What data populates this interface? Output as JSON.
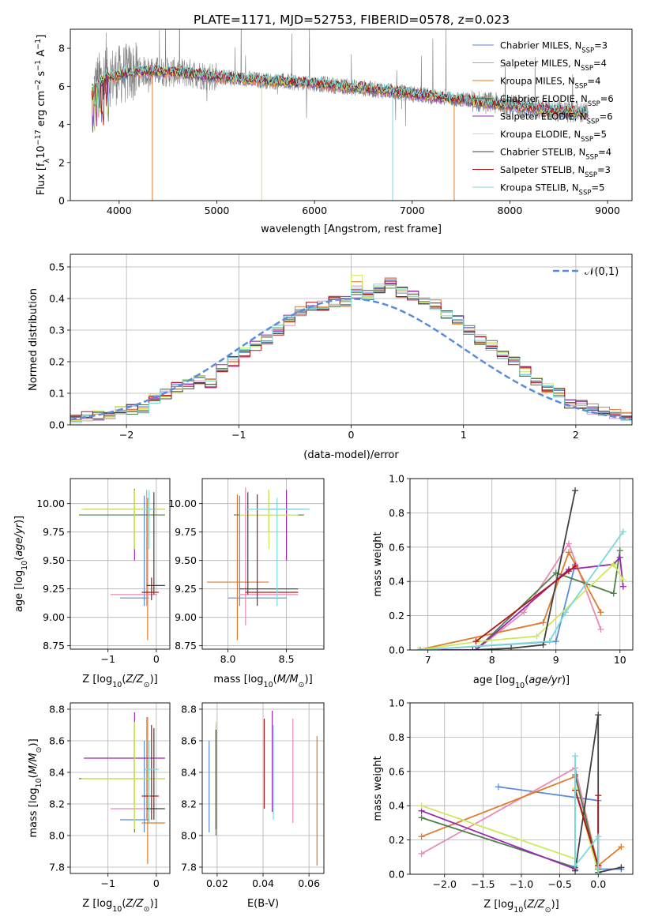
{
  "figure": {
    "title": "PLATE=1171, MJD=52753, FIBERID=0578, z=0.023"
  },
  "colors": {
    "grid": "#b0b0b0",
    "series": [
      "#5b8bdc",
      "#e889b6",
      "#e07a28",
      "#4c8048",
      "#9a27b0",
      "#cfe85a",
      "#404040",
      "#b01818",
      "#78dada"
    ],
    "data": "#808080",
    "normal": "#5b8bdc"
  },
  "chart_data": [
    {
      "id": "spectrum",
      "type": "line",
      "title": "PLATE=1171, MJD=52753, FIBERID=0578, z=0.023",
      "xlabel": "wavelength [Angstrom, rest frame]",
      "ylabel": "Flux [f_λ10^-17 erg cm^-2 s^-1 A^-1]",
      "xlim": [
        3500,
        9250
      ],
      "ylim": [
        0,
        9
      ],
      "xticks": [
        4000,
        5000,
        6000,
        7000,
        8000,
        9000
      ],
      "yticks": [
        0,
        2,
        4,
        6,
        8
      ],
      "legend_position": "top-right",
      "series": [
        {
          "name": "Chabrier MILES, N_SSP=3",
          "label_main": "Chabrier MILES, N",
          "sub": "SSP",
          "label_tail": "=3"
        },
        {
          "name": "Salpeter MILES, N_SSP=4",
          "label_main": "Salpeter MILES, N",
          "sub": "SSP",
          "label_tail": "=4"
        },
        {
          "name": "Kroupa MILES, N_SSP=4",
          "label_main": "Kroupa MILES, N",
          "sub": "SSP",
          "label_tail": "=4"
        },
        {
          "name": "Chabrier ELODIE, N_SSP=6",
          "label_main": "Chabrier ELODIE, N",
          "sub": "SSP",
          "label_tail": "=6"
        },
        {
          "name": "Salpeter ELODIE, N_SSP=6",
          "label_main": "Salpeter ELODIE, N",
          "sub": "SSP",
          "label_tail": "=6"
        },
        {
          "name": "Kroupa ELODIE, N_SSP=5",
          "label_main": "Kroupa ELODIE, N",
          "sub": "SSP",
          "label_tail": "=5"
        },
        {
          "name": "Chabrier STELIB, N_SSP=4",
          "label_main": "Chabrier STELIB, N",
          "sub": "SSP",
          "label_tail": "=4"
        },
        {
          "name": "Salpeter STELIB, N_SSP=3",
          "label_main": "Salpeter STELIB, N",
          "sub": "SSP",
          "label_tail": "=3"
        },
        {
          "name": "Kroupa STELIB, N_SSP=5",
          "label_main": "Kroupa STELIB, N",
          "sub": "SSP",
          "label_tail": "=5"
        }
      ],
      "continuum": [
        [
          3700,
          5.7
        ],
        [
          3800,
          6.3
        ],
        [
          3900,
          6.5
        ],
        [
          4000,
          6.6
        ],
        [
          4100,
          6.7
        ],
        [
          4300,
          6.8
        ],
        [
          4500,
          6.75
        ],
        [
          4700,
          6.7
        ],
        [
          5000,
          6.5
        ],
        [
          5500,
          6.3
        ],
        [
          6000,
          6.15
        ],
        [
          6500,
          5.9
        ],
        [
          7000,
          5.6
        ],
        [
          7500,
          5.3
        ],
        [
          8000,
          5.0
        ],
        [
          8500,
          4.7
        ],
        [
          8800,
          4.6
        ]
      ],
      "model_spikes": [
        {
          "x": 4340,
          "to": 0.0
        },
        {
          "x": 5460,
          "to": 0.0
        },
        {
          "x": 6800,
          "to": 0.0
        },
        {
          "x": 7430,
          "to": 0.0
        }
      ]
    },
    {
      "id": "residuals",
      "type": "step",
      "xlabel": "(data-model)/error",
      "ylabel": "Normed distribution",
      "xlim": [
        -2.5,
        2.5
      ],
      "ylim": [
        0,
        0.54
      ],
      "xticks": [
        -2,
        -1,
        0,
        1,
        2
      ],
      "yticks": [
        0.0,
        0.1,
        0.2,
        0.3,
        0.4,
        0.5
      ],
      "bin_width": 0.1,
      "legend": {
        "label": "𝒩(0,1)",
        "position": "top-right"
      },
      "histogram_base": [
        0.02,
        0.025,
        0.03,
        0.03,
        0.045,
        0.05,
        0.055,
        0.08,
        0.1,
        0.12,
        0.13,
        0.14,
        0.13,
        0.18,
        0.2,
        0.23,
        0.25,
        0.27,
        0.3,
        0.33,
        0.36,
        0.38,
        0.38,
        0.39,
        0.39,
        0.4,
        0.41,
        0.43,
        0.45,
        0.42,
        0.41,
        0.4,
        0.38,
        0.35,
        0.33,
        0.3,
        0.27,
        0.25,
        0.22,
        0.2,
        0.17,
        0.14,
        0.12,
        0.1,
        0.07,
        0.06,
        0.05,
        0.04,
        0.035,
        0.03
      ]
    },
    {
      "id": "age_vs_Z",
      "type": "errorbar",
      "xlabel": "Z [log10(Z/Z⊙)]",
      "ylabel": "age [log10(age/yr)]",
      "xlim": [
        -1.78,
        0.28
      ],
      "ylim": [
        8.72,
        10.22
      ],
      "xticks": [
        -1,
        0
      ],
      "yticks": [
        8.75,
        9.0,
        9.25,
        9.5,
        9.75,
        10.0
      ],
      "points": [
        {
          "x": -0.25,
          "y": 9.17,
          "xlo": -0.75,
          "xhi": -0.15,
          "ylo": 9.1,
          "yhi": 10.07
        },
        {
          "x": -0.2,
          "y": 9.2,
          "xlo": -0.95,
          "xhi": 0.02,
          "ylo": 9.1,
          "yhi": 10.12
        },
        {
          "x": -0.18,
          "y": 9.22,
          "xlo": -0.3,
          "xhi": -0.05,
          "ylo": 8.8,
          "yhi": 10.05
        },
        {
          "x": -0.45,
          "y": 9.9,
          "xlo": -1.6,
          "xhi": 0.18,
          "ylo": 9.6,
          "yhi": 10.13
        },
        {
          "x": -0.45,
          "y": 9.95,
          "xlo": -1.5,
          "xhi": 0.18,
          "ylo": 9.5,
          "yhi": 10.12
        },
        {
          "x": -0.45,
          "y": 9.95,
          "xlo": -1.55,
          "xhi": 0.18,
          "ylo": 9.6,
          "yhi": 10.12
        },
        {
          "x": -0.05,
          "y": 9.28,
          "xlo": -0.2,
          "xhi": 0.18,
          "ylo": 9.2,
          "yhi": 10.1
        },
        {
          "x": -0.1,
          "y": 9.22,
          "xlo": -0.3,
          "xhi": 0.05,
          "ylo": 9.15,
          "yhi": 9.35
        },
        {
          "x": -0.15,
          "y": 9.95,
          "xlo": -0.25,
          "xhi": -0.05,
          "ylo": 9.6,
          "yhi": 10.12
        }
      ]
    },
    {
      "id": "age_vs_mass",
      "type": "errorbar",
      "xlabel": "mass [log10(M/M⊙)]",
      "ylabel": "",
      "xlim": [
        7.78,
        8.82
      ],
      "ylim": [
        8.72,
        10.22
      ],
      "xticks": [
        8.0,
        8.5
      ],
      "yticks": [
        8.75,
        9.0,
        9.25,
        9.5,
        9.75,
        10.0
      ],
      "points": [
        {
          "x": 8.1,
          "y": 9.17,
          "xlo": 8.0,
          "xhi": 8.5,
          "ylo": 9.1,
          "yhi": 10.07
        },
        {
          "x": 8.15,
          "y": 9.2,
          "xlo": 8.1,
          "xhi": 8.6,
          "ylo": 8.93,
          "yhi": 10.14
        },
        {
          "x": 8.08,
          "y": 9.31,
          "xlo": 7.82,
          "xhi": 8.35,
          "ylo": 8.8,
          "yhi": 10.08
        },
        {
          "x": 8.35,
          "y": 9.9,
          "xlo": 8.05,
          "xhi": 8.65,
          "ylo": 9.75,
          "yhi": 10.12
        },
        {
          "x": 8.5,
          "y": 9.95,
          "xlo": 8.35,
          "xhi": 8.65,
          "ylo": 9.5,
          "yhi": 10.12
        },
        {
          "x": 8.35,
          "y": 9.9,
          "xlo": 8.1,
          "xhi": 8.6,
          "ylo": 9.6,
          "yhi": 10.12
        },
        {
          "x": 8.17,
          "y": 9.25,
          "xlo": 8.1,
          "xhi": 8.6,
          "ylo": 9.2,
          "yhi": 10.1
        },
        {
          "x": 8.25,
          "y": 9.22,
          "xlo": 8.15,
          "xhi": 8.6,
          "ylo": 9.1,
          "yhi": 10.08
        },
        {
          "x": 8.42,
          "y": 9.95,
          "xlo": 8.15,
          "xhi": 8.7,
          "ylo": 9.1,
          "yhi": 10.05
        }
      ]
    },
    {
      "id": "weight_vs_age",
      "type": "line",
      "xlabel": "age [log10(age/yr)]",
      "ylabel": "mass weight",
      "xlim": [
        6.72,
        10.2
      ],
      "ylim": [
        0,
        1.0
      ],
      "xticks": [
        7,
        8,
        9,
        10
      ],
      "yticks": [
        0.0,
        0.2,
        0.4,
        0.6,
        0.8,
        1.0
      ],
      "series": [
        {
          "points": [
            [
              6.88,
              0.0
            ],
            [
              9.0,
              0.05
            ],
            [
              9.3,
              0.5
            ]
          ]
        },
        {
          "points": [
            [
              7.75,
              0.0
            ],
            [
              8.5,
              0.22
            ],
            [
              9.2,
              0.62
            ],
            [
              9.7,
              0.12
            ]
          ]
        },
        {
          "points": [
            [
              6.85,
              0.0
            ],
            [
              8.8,
              0.16
            ],
            [
              9.2,
              0.57
            ],
            [
              9.7,
              0.22
            ]
          ]
        },
        {
          "points": [
            [
              6.88,
              0.0
            ],
            [
              7.75,
              0.0
            ],
            [
              9.0,
              0.45
            ],
            [
              9.9,
              0.33
            ],
            [
              10.0,
              0.58
            ]
          ]
        },
        {
          "points": [
            [
              6.88,
              0.0
            ],
            [
              7.75,
              0.0
            ],
            [
              9.2,
              0.47
            ],
            [
              9.9,
              0.5
            ],
            [
              10.0,
              0.54
            ],
            [
              10.05,
              0.37
            ]
          ]
        },
        {
          "points": [
            [
              6.85,
              0.0
            ],
            [
              7.8,
              0.05
            ],
            [
              8.7,
              0.08
            ],
            [
              9.9,
              0.5
            ],
            [
              10.05,
              0.41
            ]
          ]
        },
        {
          "points": [
            [
              7.7,
              0.0
            ],
            [
              8.3,
              0.01
            ],
            [
              8.8,
              0.03
            ],
            [
              9.3,
              0.93
            ]
          ]
        },
        {
          "points": [
            [
              7.75,
              0.05
            ],
            [
              9.2,
              0.46
            ],
            [
              9.3,
              0.49
            ]
          ]
        },
        {
          "points": [
            [
              6.88,
              0.0
            ],
            [
              8.9,
              0.05
            ],
            [
              9.15,
              0.22
            ],
            [
              10.05,
              0.69
            ]
          ]
        }
      ]
    },
    {
      "id": "mass_vs_Z",
      "type": "errorbar",
      "xlabel": "Z [log10(Z/Z⊙)]",
      "ylabel": "mass [log10(M/M⊙)]",
      "xlim": [
        -1.78,
        0.28
      ],
      "ylim": [
        7.76,
        8.84
      ],
      "xticks": [
        -1,
        0
      ],
      "yticks": [
        7.8,
        8.0,
        8.2,
        8.4,
        8.6,
        8.8
      ],
      "points": [
        {
          "x": -0.25,
          "y": 8.1,
          "xlo": -0.75,
          "xhi": -0.15,
          "ylo": 8.02,
          "yhi": 8.6
        },
        {
          "x": -0.2,
          "y": 8.17,
          "xlo": -0.95,
          "xhi": 0.02,
          "ylo": 8.1,
          "yhi": 8.75
        },
        {
          "x": -0.18,
          "y": 8.08,
          "xlo": -0.3,
          "xhi": 0.18,
          "ylo": 7.82,
          "yhi": 8.75
        },
        {
          "x": -0.45,
          "y": 8.36,
          "xlo": -1.6,
          "xhi": 0.18,
          "ylo": 8.02,
          "yhi": 8.7
        },
        {
          "x": -0.45,
          "y": 8.49,
          "xlo": -1.5,
          "xhi": 0.18,
          "ylo": 8.2,
          "yhi": 8.78
        },
        {
          "x": -0.45,
          "y": 8.36,
          "xlo": -1.55,
          "xhi": 0.18,
          "ylo": 8.04,
          "yhi": 8.72
        },
        {
          "x": -0.05,
          "y": 8.17,
          "xlo": -0.2,
          "xhi": 0.18,
          "ylo": 8.1,
          "yhi": 8.68
        },
        {
          "x": -0.1,
          "y": 8.25,
          "xlo": -0.3,
          "xhi": 0.05,
          "ylo": 8.1,
          "yhi": 8.7
        },
        {
          "x": -0.15,
          "y": 8.42,
          "xlo": -0.25,
          "xhi": 0.05,
          "ylo": 8.08,
          "yhi": 8.6
        }
      ]
    },
    {
      "id": "mass_vs_ebv",
      "type": "errorbar",
      "xlabel": "E(B-V)",
      "ylabel": "",
      "xlim": [
        0.0135,
        0.0665
      ],
      "ylim": [
        7.76,
        8.84
      ],
      "xticks": [
        0.02,
        0.04,
        0.06
      ],
      "yticks": [
        7.8,
        8.0,
        8.2,
        8.4,
        8.6,
        8.8
      ],
      "points": [
        {
          "x": 0.0165,
          "y": 8.3,
          "ylo": 8.02,
          "yhi": 8.6
        },
        {
          "x": 0.053,
          "y": 8.4,
          "ylo": 8.08,
          "yhi": 8.74
        },
        {
          "x": 0.0635,
          "y": 8.2,
          "ylo": 7.81,
          "yhi": 8.63
        },
        {
          "x": 0.0195,
          "y": 8.35,
          "ylo": 8.0,
          "yhi": 8.7
        },
        {
          "x": 0.044,
          "y": 8.5,
          "ylo": 8.15,
          "yhi": 8.79
        },
        {
          "x": 0.0195,
          "y": 8.4,
          "ylo": 8.04,
          "yhi": 8.72
        },
        {
          "x": 0.0195,
          "y": 8.35,
          "ylo": 8.04,
          "yhi": 8.67
        },
        {
          "x": 0.0405,
          "y": 8.45,
          "ylo": 8.17,
          "yhi": 8.74
        },
        {
          "x": 0.0445,
          "y": 8.4,
          "ylo": 8.1,
          "yhi": 8.7
        }
      ]
    },
    {
      "id": "weight_vs_Z",
      "type": "line",
      "xlabel": "Z [log10(Z/Z⊙)]",
      "ylabel": "mass weight",
      "xlim": [
        -2.45,
        0.45
      ],
      "ylim": [
        0,
        1.0
      ],
      "xticks": [
        -2.0,
        -1.5,
        -1.0,
        -0.5,
        0.0
      ],
      "yticks": [
        0.0,
        0.2,
        0.4,
        0.6,
        0.8,
        1.0
      ],
      "series": [
        {
          "points": [
            [
              -1.3,
              0.51
            ],
            [
              0.0,
              0.43
            ],
            [
              0.0,
              0.03
            ],
            [
              0.3,
              0.03
            ]
          ]
        },
        {
          "points": [
            [
              -2.3,
              0.12
            ],
            [
              -0.3,
              0.62
            ],
            [
              0.0,
              0.04
            ]
          ]
        },
        {
          "points": [
            [
              -2.3,
              0.22
            ],
            [
              -0.3,
              0.57
            ],
            [
              0.0,
              0.05
            ],
            [
              0.3,
              0.16
            ]
          ]
        },
        {
          "points": [
            [
              -2.3,
              0.33
            ],
            [
              -0.3,
              0.04
            ],
            [
              -0.3,
              0.58
            ],
            [
              0.0,
              0.03
            ]
          ]
        },
        {
          "points": [
            [
              -2.3,
              0.37
            ],
            [
              -0.3,
              0.03
            ],
            [
              -0.3,
              0.5
            ],
            [
              0.0,
              0.05
            ]
          ]
        },
        {
          "points": [
            [
              -2.3,
              0.4
            ],
            [
              -0.3,
              0.09
            ],
            [
              -0.3,
              0.5
            ],
            [
              0.0,
              0.01
            ]
          ]
        },
        {
          "points": [
            [
              -0.3,
              0.02
            ],
            [
              0.0,
              0.93
            ],
            [
              0.0,
              0.01
            ],
            [
              0.3,
              0.04
            ]
          ]
        },
        {
          "points": [
            [
              -0.3,
              0.49
            ],
            [
              0.0,
              0.05
            ],
            [
              0.0,
              0.46
            ]
          ]
        },
        {
          "points": [
            [
              -0.3,
              0.69
            ],
            [
              -0.3,
              0.05
            ],
            [
              0.0,
              0.22
            ],
            [
              0.0,
              0.0
            ]
          ]
        }
      ]
    }
  ]
}
